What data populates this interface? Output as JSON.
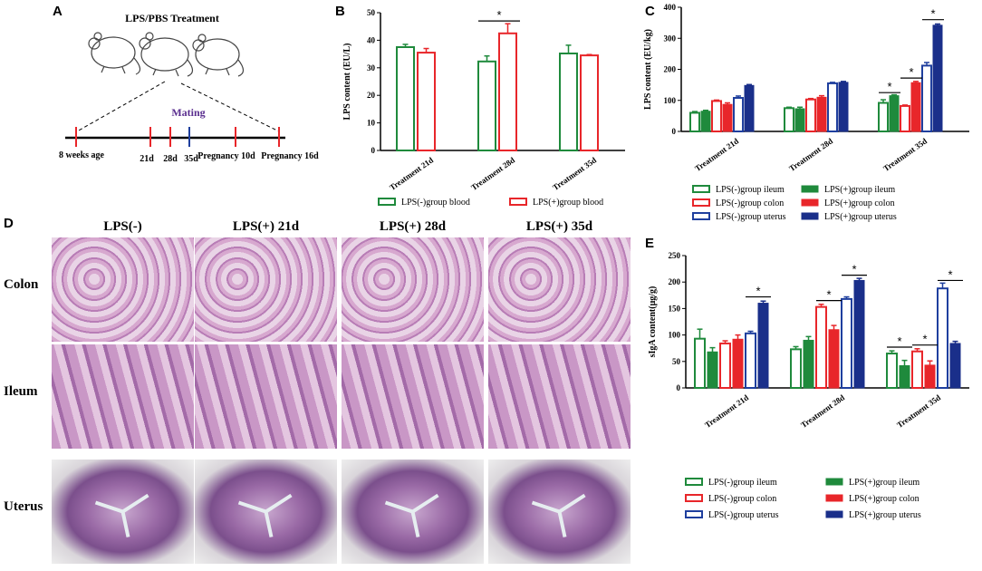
{
  "panels": {
    "a": "A",
    "b": "B",
    "c": "C",
    "d": "D",
    "e": "E"
  },
  "panel_a": {
    "title": "LPS/PBS Treatment",
    "mating": "Mating",
    "timeline": [
      "8 weeks age",
      "21d",
      "28d",
      "35d",
      "Pregnancy 10d",
      "Pregnancy 16d"
    ]
  },
  "colors": {
    "green": "#1f8a3c",
    "red": "#e8262a",
    "blue": "#1f3f9e",
    "navy": "#1a2f8a"
  },
  "chart_data": [
    {
      "id": "B",
      "type": "bar",
      "ylabel": "LPS content (EU/L)",
      "ylim": [
        0,
        50
      ],
      "yticks": [
        0,
        10,
        20,
        30,
        40,
        50
      ],
      "categories": [
        "Treatment 21d",
        "Treatment 28d",
        "Treatment 35d"
      ],
      "series": [
        {
          "name": "LPS(-)group blood",
          "values": [
            37.5,
            32.3,
            35.2
          ],
          "errors": [
            1.0,
            2.0,
            3.0
          ],
          "color": "#1f8a3c",
          "fill": "open"
        },
        {
          "name": "LPS(+)group blood",
          "values": [
            35.5,
            42.5,
            34.5
          ],
          "errors": [
            1.5,
            3.5,
            0.3
          ],
          "color": "#e8262a",
          "fill": "open"
        }
      ],
      "significance": [
        {
          "category": "Treatment 28d",
          "label": "*"
        }
      ]
    },
    {
      "id": "C",
      "type": "bar",
      "ylabel": "LPS content (EU/kg)",
      "ylim": [
        0,
        400
      ],
      "yticks": [
        0,
        100,
        200,
        300,
        400
      ],
      "categories": [
        "Treatment 21d",
        "Treatment 28d",
        "Treatment 35d"
      ],
      "series": [
        {
          "name": "LPS(-)group ileum",
          "values": [
            60,
            75,
            92
          ],
          "errors": [
            4,
            3,
            10
          ],
          "color": "#1f8a3c",
          "fill": "open"
        },
        {
          "name": "LPS(+)group ileum",
          "values": [
            65,
            73,
            115
          ],
          "errors": [
            3,
            5,
            3
          ],
          "color": "#1f8a3c",
          "fill": "solid"
        },
        {
          "name": "LPS(-)group colon",
          "values": [
            98,
            103,
            82
          ],
          "errors": [
            3,
            3,
            3
          ],
          "color": "#e8262a",
          "fill": "open"
        },
        {
          "name": "LPS(+)group colon",
          "values": [
            87,
            110,
            157
          ],
          "errors": [
            5,
            5,
            4
          ],
          "color": "#e8262a",
          "fill": "solid"
        },
        {
          "name": "LPS(-)group uterus",
          "values": [
            108,
            155,
            212
          ],
          "errors": [
            6,
            3,
            10
          ],
          "color": "#1f3f9e",
          "fill": "open"
        },
        {
          "name": "LPS(+)group uterus",
          "values": [
            148,
            158,
            342
          ],
          "errors": [
            3,
            3,
            4
          ],
          "color": "#1a2f8a",
          "fill": "solid"
        }
      ],
      "significance": [
        {
          "category": "Treatment 35d",
          "label": "*"
        },
        {
          "category": "Treatment 35d",
          "label": "*"
        },
        {
          "category": "Treatment 35d",
          "label": "*"
        }
      ]
    },
    {
      "id": "E",
      "type": "bar",
      "ylabel": "sIgA content(μg/g)",
      "ylim": [
        0,
        250
      ],
      "yticks": [
        0,
        50,
        100,
        150,
        200,
        250
      ],
      "categories": [
        "Treatment 21d",
        "Treatment 28d",
        "Treatment 35d"
      ],
      "series": [
        {
          "name": "LPS(-)group ileum",
          "values": [
            93,
            73,
            65
          ],
          "errors": [
            18,
            5,
            5
          ],
          "color": "#1f8a3c",
          "fill": "open"
        },
        {
          "name": "LPS(+)group ileum",
          "values": [
            68,
            90,
            42
          ],
          "errors": [
            8,
            7,
            10
          ],
          "color": "#1f8a3c",
          "fill": "solid"
        },
        {
          "name": "LPS(-)group colon",
          "values": [
            84,
            153,
            69
          ],
          "errors": [
            5,
            5,
            5
          ],
          "color": "#e8262a",
          "fill": "open"
        },
        {
          "name": "LPS(+)group colon",
          "values": [
            92,
            110,
            43
          ],
          "errors": [
            8,
            8,
            8
          ],
          "color": "#e8262a",
          "fill": "solid"
        },
        {
          "name": "LPS(-)group uterus",
          "values": [
            103,
            168,
            188
          ],
          "errors": [
            4,
            4,
            10
          ],
          "color": "#1f3f9e",
          "fill": "open"
        },
        {
          "name": "LPS(+)group uterus",
          "values": [
            160,
            203,
            84
          ],
          "errors": [
            4,
            4,
            4
          ],
          "color": "#1a2f8a",
          "fill": "solid"
        }
      ],
      "significance": [
        {
          "category": "Treatment 21d",
          "label": "*"
        },
        {
          "category": "Treatment 28d",
          "label": "*"
        },
        {
          "category": "Treatment 28d",
          "label": "*"
        },
        {
          "category": "Treatment 35d",
          "label": "*"
        },
        {
          "category": "Treatment 35d",
          "label": "*"
        },
        {
          "category": "Treatment 35d",
          "label": "*"
        }
      ]
    }
  ],
  "panel_d": {
    "columns": [
      "LPS(-)",
      "LPS(+) 21d",
      "LPS(+) 28d",
      "LPS(+) 35d"
    ],
    "rows": [
      "Colon",
      "Ileum",
      "Uterus"
    ]
  }
}
